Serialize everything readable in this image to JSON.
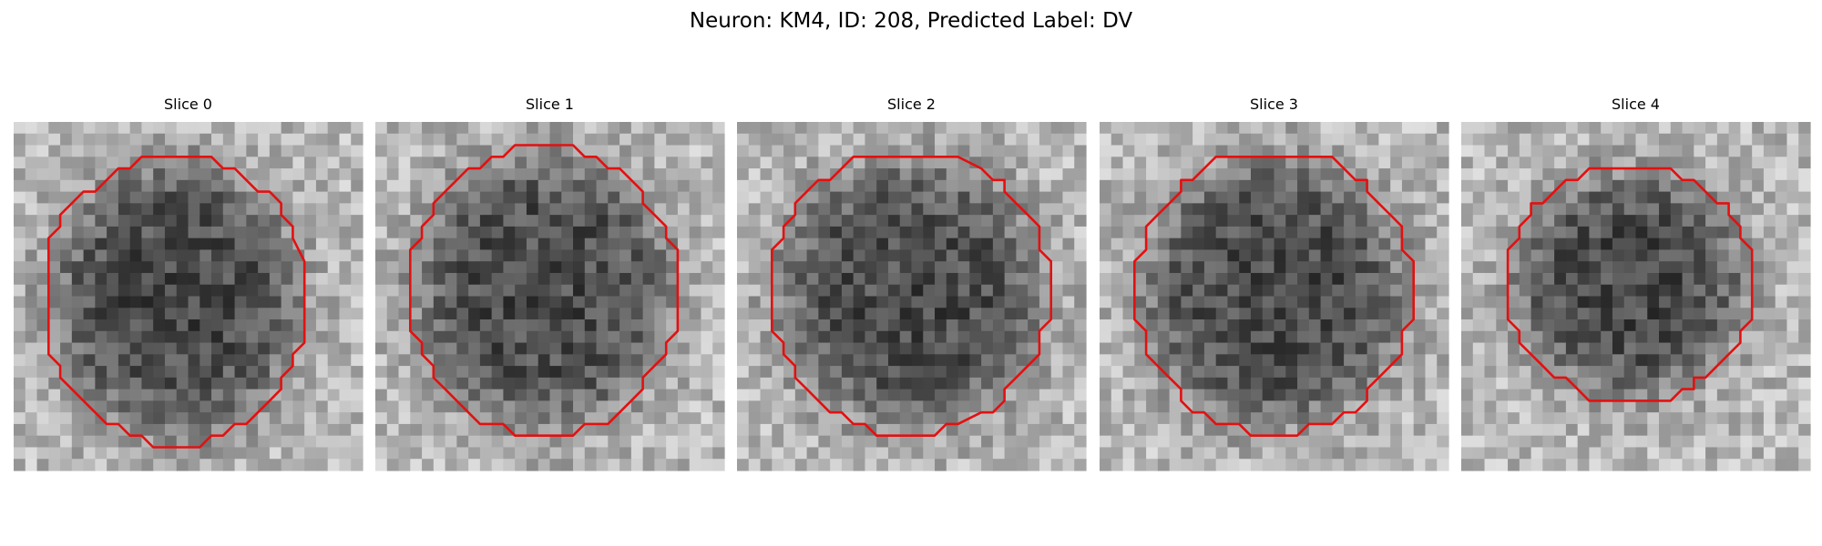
{
  "header": {
    "title": "Neuron: KM4, ID: 208, Predicted Label: DV"
  },
  "panels": [
    {
      "title": "Slice 0"
    },
    {
      "title": "Slice 1"
    },
    {
      "title": "Slice 2"
    },
    {
      "title": "Slice 3"
    },
    {
      "title": "Slice 4"
    }
  ]
}
